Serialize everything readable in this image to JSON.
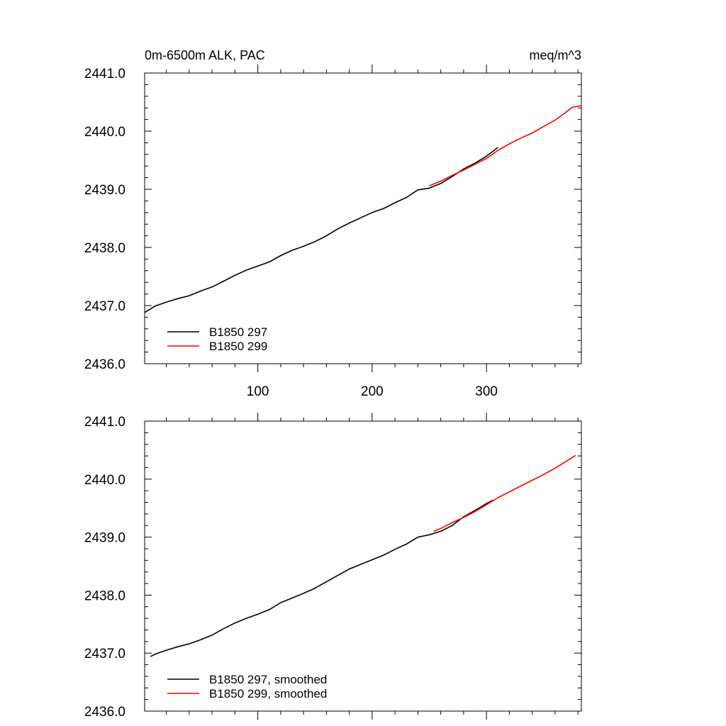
{
  "colors": {
    "series_black": "#000000",
    "series_red": "#ff0000",
    "axes": "#000000"
  },
  "header": {
    "title_left": "0m-6500m ALK, PAC",
    "title_right": "meq/m^3"
  },
  "chart_data": [
    {
      "type": "line",
      "xlim": [
        1,
        383
      ],
      "ylim": [
        2436.0,
        2441.0
      ],
      "xticks": [
        100,
        200,
        300
      ],
      "xtick_labels": [
        "100",
        "200",
        "300"
      ],
      "yticks": [
        2436.0,
        2437.0,
        2438.0,
        2439.0,
        2440.0,
        2441.0
      ],
      "ytick_labels": [
        "2436.0",
        "2437.0",
        "2438.0",
        "2439.0",
        "2440.0",
        "2441.0"
      ],
      "legend_position": "bottom-left",
      "series": [
        {
          "name": "B1850 297",
          "color": "#000000",
          "x": [
            1,
            10,
            20,
            30,
            40,
            50,
            60,
            70,
            80,
            90,
            100,
            110,
            120,
            130,
            140,
            150,
            160,
            170,
            180,
            190,
            200,
            210,
            220,
            230,
            240,
            250,
            260,
            270,
            280,
            290,
            300,
            310
          ],
          "y": [
            2436.88,
            2436.99,
            2437.06,
            2437.12,
            2437.17,
            2437.25,
            2437.32,
            2437.42,
            2437.52,
            2437.61,
            2437.68,
            2437.75,
            2437.86,
            2437.95,
            2438.02,
            2438.1,
            2438.2,
            2438.32,
            2438.42,
            2438.51,
            2438.6,
            2438.67,
            2438.77,
            2438.86,
            2438.99,
            2439.02,
            2439.1,
            2439.22,
            2439.35,
            2439.45,
            2439.57,
            2439.72
          ]
        },
        {
          "name": "B1850 299",
          "color": "#ff0000",
          "x": [
            250,
            260,
            270,
            280,
            290,
            300,
            310,
            320,
            330,
            340,
            350,
            360,
            370,
            375,
            383
          ],
          "y": [
            2439.06,
            2439.14,
            2439.24,
            2439.33,
            2439.43,
            2439.53,
            2439.67,
            2439.78,
            2439.88,
            2439.97,
            2440.08,
            2440.19,
            2440.33,
            2440.41,
            2440.44
          ]
        }
      ]
    },
    {
      "type": "line",
      "xlim": [
        1,
        383
      ],
      "ylim": [
        2436.0,
        2441.0
      ],
      "xticks": [
        100,
        200,
        300
      ],
      "yticks": [
        2436.0,
        2437.0,
        2438.0,
        2439.0,
        2440.0,
        2441.0
      ],
      "ytick_labels": [
        "2436.0",
        "2437.0",
        "2438.0",
        "2439.0",
        "2440.0",
        "2441.0"
      ],
      "legend_position": "bottom-left",
      "series": [
        {
          "name": "B1850 297, smoothed",
          "color": "#000000",
          "x": [
            6,
            10,
            20,
            30,
            40,
            50,
            60,
            70,
            80,
            90,
            100,
            110,
            120,
            130,
            140,
            150,
            160,
            170,
            180,
            190,
            200,
            210,
            220,
            230,
            240,
            250,
            260,
            270,
            280,
            290,
            300,
            306
          ],
          "y": [
            2436.94,
            2436.98,
            2437.05,
            2437.11,
            2437.16,
            2437.23,
            2437.31,
            2437.42,
            2437.52,
            2437.6,
            2437.67,
            2437.75,
            2437.87,
            2437.95,
            2438.03,
            2438.12,
            2438.23,
            2438.34,
            2438.45,
            2438.53,
            2438.61,
            2438.69,
            2438.79,
            2438.88,
            2439.0,
            2439.04,
            2439.1,
            2439.2,
            2439.35,
            2439.46,
            2439.58,
            2439.64
          ]
        },
        {
          "name": "B1850 299, smoothed",
          "color": "#ff0000",
          "x": [
            254,
            260,
            270,
            280,
            290,
            300,
            310,
            320,
            330,
            340,
            350,
            360,
            370,
            378
          ],
          "y": [
            2439.1,
            2439.15,
            2439.25,
            2439.34,
            2439.44,
            2439.56,
            2439.68,
            2439.78,
            2439.88,
            2439.98,
            2440.08,
            2440.19,
            2440.31,
            2440.41
          ]
        }
      ]
    }
  ]
}
